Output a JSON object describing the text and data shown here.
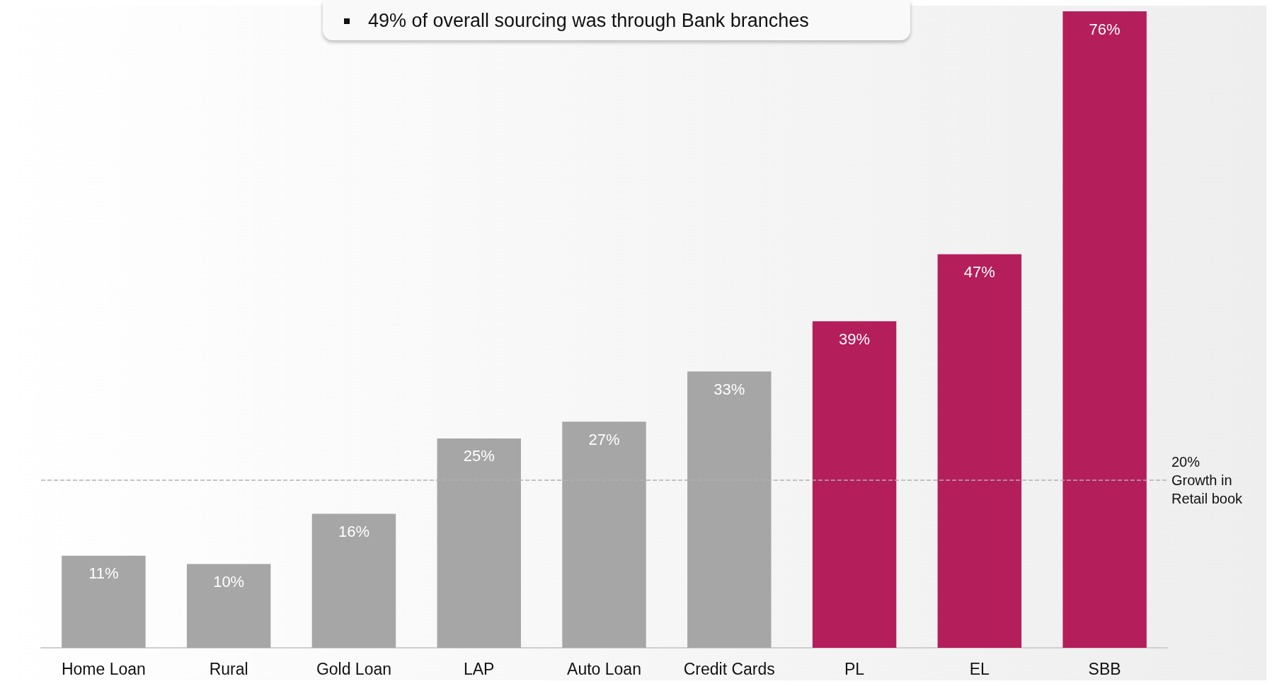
{
  "chart_data": {
    "type": "bar",
    "categories": [
      "Home Loan",
      "Rural",
      "Gold Loan",
      "LAP",
      "Auto Loan",
      "Credit Cards",
      "PL",
      "EL",
      "SBB"
    ],
    "values": [
      11,
      10,
      16,
      25,
      27,
      33,
      39,
      47,
      76
    ],
    "colors": [
      "#a6a6a6",
      "#a6a6a6",
      "#a6a6a6",
      "#a6a6a6",
      "#a6a6a6",
      "#a6a6a6",
      "#b41e5a",
      "#b41e5a",
      "#b41e5a"
    ],
    "value_labels": [
      "11%",
      "10%",
      "16%",
      "25%",
      "27%",
      "33%",
      "39%",
      "47%",
      "76%"
    ],
    "ref_lines": [
      {
        "axis": "y",
        "value": 20,
        "label": "20% Growth in Retail book",
        "color": "#b0b0b0",
        "line_style": "dashed"
      }
    ],
    "annotations": [
      "49% of overall sourcing was through Bank branches"
    ]
  }
}
